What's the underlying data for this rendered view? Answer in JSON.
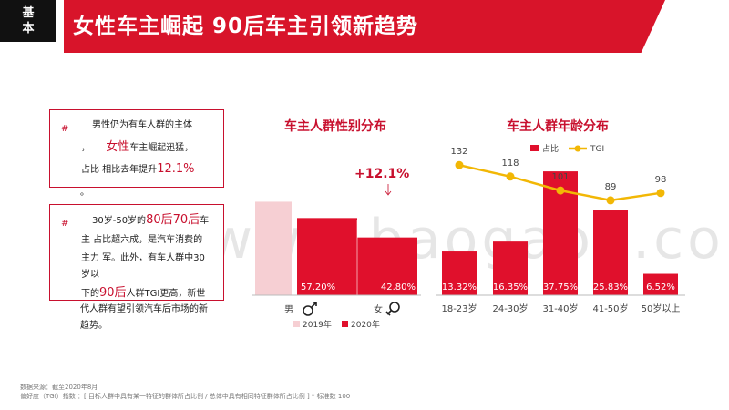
{
  "header": {
    "badge_line1": "基",
    "badge_line2": "本",
    "title": "女性车主崛起 90后车主引领新趋势"
  },
  "notes": {
    "hash": "#",
    "box1": {
      "l1": "男性仍为有车人群的主体",
      "l2a": "，",
      "l2b": "女性",
      "l2c": "车主崛起迅猛，",
      "l3a": "占比 相比去年提升",
      "l3b": "12.1%",
      "after": "。"
    },
    "box2": {
      "l1a": "30岁-50岁的",
      "l1b": "80后70后",
      "l1c": "车",
      "l2": "主 占比超六成，是汽车消费的",
      "l3": "主力 军。此外，有车人群中30",
      "l4": "岁以",
      "l5a": "下的",
      "l5b": "90后",
      "l5c": "人群TGI更高，新世",
      "l6": "代人群有望引领汽车后市场的新",
      "l7": "趋势。"
    }
  },
  "watermark": "www.baogao8.com",
  "footnotes": {
    "source": "数据来源：截至2020年8月",
    "tgi": "偏好度（TGI）指数 ：[ 目标人群中具有某一特征的群体所占比例   /  总体中具有相同特征群体所占比例  ] * 标准数 100"
  },
  "chart_data": [
    {
      "type": "bar",
      "title": "车主人群性别分布",
      "categories": [
        "男",
        "女"
      ],
      "series": [
        {
          "name": "2019年",
          "color": "#f6cfd3",
          "values": [
            69.3,
            null
          ]
        },
        {
          "name": "2020年",
          "color": "#e0102c",
          "values": [
            57.2,
            42.8
          ]
        }
      ],
      "data_labels": [
        "57.20%",
        "42.80%"
      ],
      "annotation": "+12.1%",
      "category_icons": [
        "male-symbol",
        "female-symbol"
      ],
      "ylim": [
        0,
        100
      ],
      "legend": "bottom"
    },
    {
      "type": "bar",
      "title": "车主人群年龄分布",
      "categories": [
        "18-23岁",
        "24-30岁",
        "31-40岁",
        "41-50岁",
        "50岁以上"
      ],
      "series": [
        {
          "name": "占比",
          "color": "#e0102c",
          "values": [
            13.32,
            16.35,
            37.75,
            25.83,
            6.52
          ],
          "labels": [
            "13.32%",
            "16.35%",
            "37.75%",
            "25.83%",
            "6.52%"
          ]
        },
        {
          "name": "TGI",
          "color": "#f2b705",
          "type": "line",
          "values": [
            132,
            118,
            101,
            89,
            98
          ],
          "labels": [
            "132",
            "118",
            "101",
            "89",
            "98"
          ]
        }
      ],
      "ylim": [
        0,
        40
      ],
      "tgi_ylim": [
        0,
        160
      ],
      "legend": "top"
    }
  ]
}
